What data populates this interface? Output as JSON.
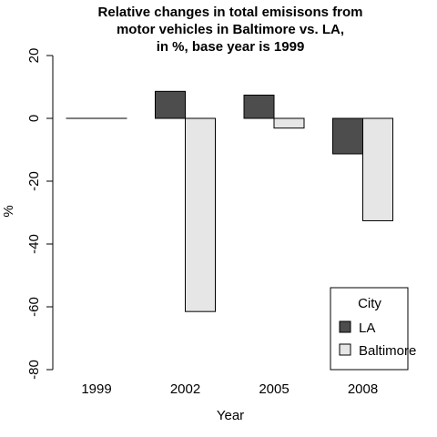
{
  "chart_data": {
    "type": "bar",
    "title_lines": [
      "Relative changes in total emisisons from",
      "motor vehicles in Baltimore vs. LA,",
      "in %, base year is 1999"
    ],
    "xlabel": "Year",
    "ylabel": "%",
    "categories": [
      "1999",
      "2002",
      "2005",
      "2008"
    ],
    "series": [
      {
        "name": "LA",
        "color": "#4d4d4d",
        "values": [
          0,
          8.6,
          7.4,
          -11.3
        ]
      },
      {
        "name": "Baltimore",
        "color": "#e6e6e6",
        "values": [
          0,
          -61.5,
          -3.1,
          -32.6
        ]
      }
    ],
    "ylim": [
      -80,
      20
    ],
    "yticks": [
      -80,
      -60,
      -40,
      -20,
      0,
      20
    ],
    "legend": {
      "title": "City",
      "position": "bottom-right"
    },
    "grid": false
  }
}
